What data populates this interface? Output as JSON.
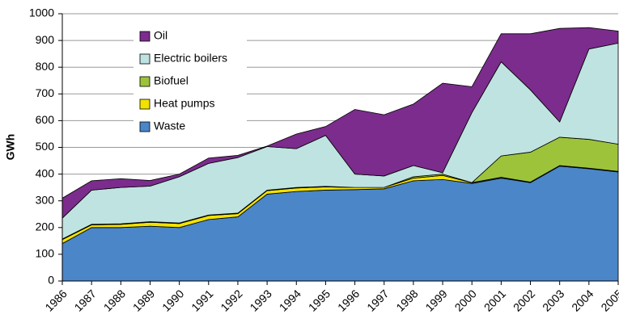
{
  "chart_data": {
    "type": "stacked-area",
    "y_label": "GWh",
    "categories": [
      "1986",
      "1987",
      "1988",
      "1989",
      "1990",
      "1991",
      "1992",
      "1993",
      "1994",
      "1995",
      "1996",
      "1997",
      "1998",
      "1999",
      "2000",
      "2001",
      "2002",
      "2003",
      "2004",
      "2005"
    ],
    "series": [
      {
        "name": "Waste",
        "color": "#4a86c8",
        "values": [
          140,
          200,
          200,
          205,
          200,
          230,
          240,
          325,
          335,
          340,
          342,
          345,
          375,
          380,
          365,
          385,
          368,
          430,
          420,
          408
        ]
      },
      {
        "name": "Heat pumps",
        "color": "#f2e200",
        "values": [
          15,
          10,
          12,
          15,
          15,
          15,
          12,
          13,
          13,
          12,
          8,
          5,
          10,
          15,
          3,
          3,
          2,
          2,
          2,
          2
        ]
      },
      {
        "name": "Biofuel",
        "color": "#9dc33b",
        "values": [
          2,
          2,
          2,
          2,
          2,
          2,
          2,
          2,
          2,
          2,
          0,
          0,
          5,
          5,
          0,
          80,
          112,
          106,
          108,
          102
        ]
      },
      {
        "name": "Electric boilers",
        "color": "#bfe3e0",
        "values": [
          78,
          128,
          136,
          133,
          173,
          193,
          208,
          163,
          145,
          191,
          50,
          43,
          42,
          5,
          262,
          352,
          233,
          57,
          338,
          378
        ]
      },
      {
        "name": "Oil",
        "color": "#7b2c8c",
        "values": [
          75,
          35,
          33,
          21,
          10,
          20,
          8,
          2,
          55,
          33,
          242,
          229,
          230,
          335,
          97,
          105,
          210,
          350,
          80,
          45
        ]
      }
    ],
    "ylim": [
      0,
      1000
    ],
    "yticks": [
      0,
      100,
      200,
      300,
      400,
      500,
      600,
      700,
      800,
      900,
      1000
    ],
    "grid": true,
    "legend": "upper left"
  }
}
